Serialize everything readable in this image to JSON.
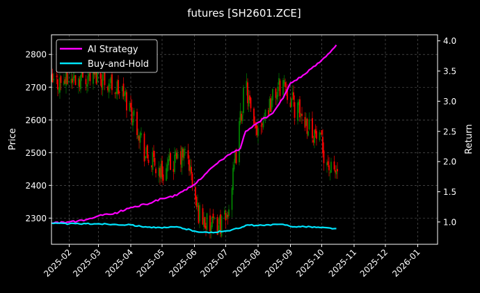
{
  "chart_data": {
    "type": "line",
    "title": "futures [SH2601.ZCE]",
    "ylabel_left": "Price",
    "ylabel_right": "Return",
    "x_ticks": [
      "2025-02",
      "2025-03",
      "2025-04",
      "2025-05",
      "2025-06",
      "2025-07",
      "2025-08",
      "2025-09",
      "2025-10",
      "2025-11",
      "2025-12",
      "2026-01"
    ],
    "xlim": [
      "2025-01-15",
      "2026-01-20"
    ],
    "ylim_left": [
      2220,
      2860
    ],
    "ylim_right": [
      0.63,
      4.1
    ],
    "y_ticks_left": [
      2300,
      2400,
      2500,
      2600,
      2700,
      2800
    ],
    "y_ticks_right": [
      "1.0",
      "1.5",
      "2.0",
      "2.5",
      "3.0",
      "3.5",
      "4.0"
    ],
    "grid": true,
    "legend_position": "top-left",
    "background": "#000000",
    "candle_up_color": "#008000",
    "candle_down_color": "#ff0000",
    "price_candles": {
      "axis": "left",
      "date_range": [
        "2025-01-15",
        "2025-10-16"
      ],
      "close_anchors": [
        [
          "2025-01-15",
          2710
        ],
        [
          "2025-02-01",
          2725
        ],
        [
          "2025-03-01",
          2740
        ],
        [
          "2025-03-25",
          2680
        ],
        [
          "2025-04-08",
          2580
        ],
        [
          "2025-04-15",
          2490
        ],
        [
          "2025-05-01",
          2440
        ],
        [
          "2025-05-25",
          2500
        ],
        [
          "2025-06-03",
          2330
        ],
        [
          "2025-06-15",
          2270
        ],
        [
          "2025-07-01",
          2290
        ],
        [
          "2025-07-08",
          2420
        ],
        [
          "2025-07-15",
          2600
        ],
        [
          "2025-07-20",
          2715
        ],
        [
          "2025-07-28",
          2560
        ],
        [
          "2025-08-12",
          2650
        ],
        [
          "2025-08-25",
          2720
        ],
        [
          "2025-09-05",
          2640
        ],
        [
          "2025-09-20",
          2580
        ],
        [
          "2025-10-01",
          2520
        ],
        [
          "2025-10-10",
          2440
        ],
        [
          "2025-10-16",
          2440
        ]
      ]
    },
    "series": [
      {
        "name": "AI Strategy",
        "axis": "right",
        "color": "#ff00ff",
        "points": [
          [
            "2025-01-15",
            0.98
          ],
          [
            "2025-02-01",
            1.0
          ],
          [
            "2025-02-15",
            1.02
          ],
          [
            "2025-03-01",
            1.1
          ],
          [
            "2025-03-15",
            1.13
          ],
          [
            "2025-04-01",
            1.24
          ],
          [
            "2025-04-15",
            1.29
          ],
          [
            "2025-05-01",
            1.39
          ],
          [
            "2025-05-15",
            1.44
          ],
          [
            "2025-06-01",
            1.62
          ],
          [
            "2025-06-15",
            1.86
          ],
          [
            "2025-07-01",
            2.08
          ],
          [
            "2025-07-15",
            2.22
          ],
          [
            "2025-07-20",
            2.5
          ],
          [
            "2025-08-01",
            2.65
          ],
          [
            "2025-08-15",
            2.8
          ],
          [
            "2025-08-25",
            3.05
          ],
          [
            "2025-09-01",
            3.3
          ],
          [
            "2025-09-15",
            3.45
          ],
          [
            "2025-10-01",
            3.68
          ],
          [
            "2025-10-15",
            3.93
          ]
        ]
      },
      {
        "name": "Buy-and-Hold",
        "axis": "right",
        "color": "#00e5ff",
        "points": [
          [
            "2025-01-15",
            0.98
          ],
          [
            "2025-02-01",
            0.97
          ],
          [
            "2025-03-01",
            0.97
          ],
          [
            "2025-04-01",
            0.95
          ],
          [
            "2025-04-15",
            0.92
          ],
          [
            "2025-05-01",
            0.9
          ],
          [
            "2025-05-15",
            0.92
          ],
          [
            "2025-06-01",
            0.85
          ],
          [
            "2025-06-15",
            0.82
          ],
          [
            "2025-07-01",
            0.85
          ],
          [
            "2025-07-15",
            0.9
          ],
          [
            "2025-07-22",
            0.95
          ],
          [
            "2025-08-01",
            0.94
          ],
          [
            "2025-08-25",
            0.96
          ],
          [
            "2025-09-05",
            0.92
          ],
          [
            "2025-09-20",
            0.92
          ],
          [
            "2025-10-15",
            0.89
          ]
        ]
      }
    ]
  }
}
